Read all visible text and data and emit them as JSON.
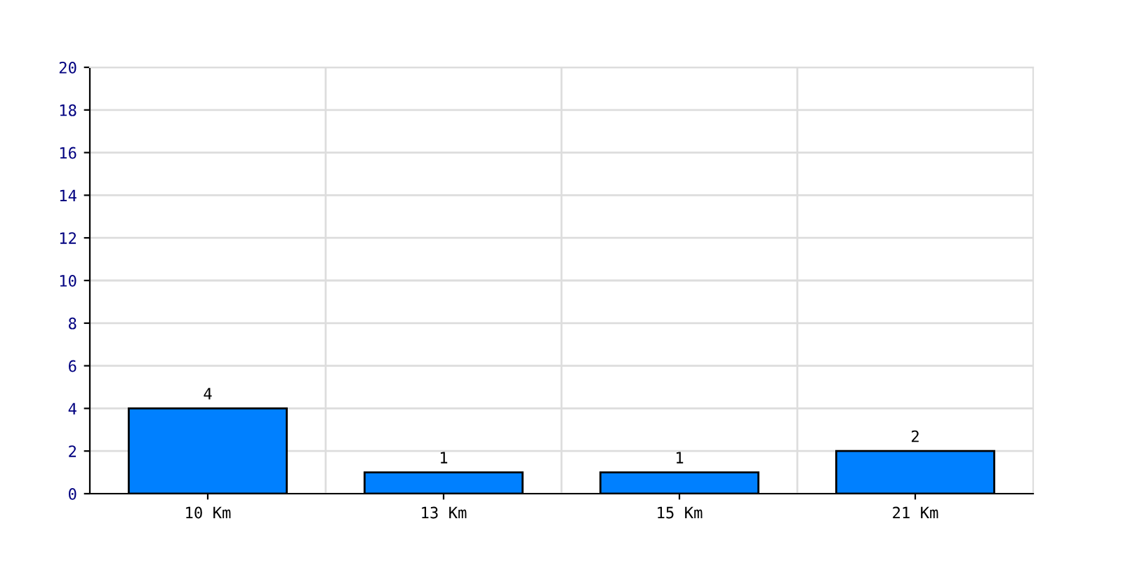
{
  "chart_data": {
    "type": "bar",
    "categories": [
      "10 Km",
      "13 Km",
      "15 Km",
      "21 Km"
    ],
    "values": [
      4,
      1,
      1,
      2
    ],
    "color": "#0080ff",
    "ylim": [
      0,
      20
    ],
    "yticks": [
      0,
      2,
      4,
      6,
      8,
      10,
      12,
      14,
      16,
      18,
      20
    ],
    "grid": true,
    "data_labels": true
  }
}
